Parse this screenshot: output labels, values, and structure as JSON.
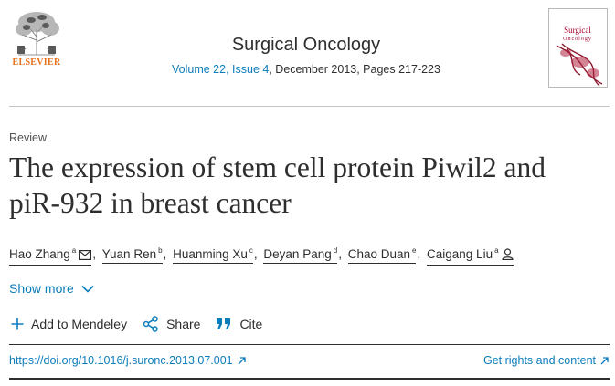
{
  "header": {
    "publisher_logo_text": "ELSEVIER",
    "journal_name": "Surgical Oncology",
    "issue_link": "Volume 22, Issue 4",
    "issue_rest": ", December 2013, Pages 217-223",
    "cover_title_line1": "Surgical",
    "cover_title_line2": "Oncology"
  },
  "article": {
    "type": "Review",
    "title": "The expression of stem cell protein Piwil2 and piR-932 in breast cancer"
  },
  "authors": [
    {
      "name": "Hao Zhang",
      "sup": "a"
    },
    {
      "name": "Yuan Ren",
      "sup": "b"
    },
    {
      "name": "Huanming Xu",
      "sup": "c"
    },
    {
      "name": "Deyan Pang",
      "sup": "d"
    },
    {
      "name": "Chao Duan",
      "sup": "e"
    },
    {
      "name": "Caigang Liu",
      "sup": "a"
    }
  ],
  "authors_sep": ",",
  "show_more_label": "Show more",
  "actions": {
    "mendeley": "Add to Mendeley",
    "share": "Share",
    "cite": "Cite"
  },
  "links": {
    "doi": "https://doi.org/10.1016/j.suronc.2013.07.001",
    "rights": "Get rights and content"
  },
  "colors": {
    "link": "#0c7dbb",
    "text": "#2e2e2e",
    "elsevier_orange": "#e9711c",
    "cover_accent": "#a8002a"
  }
}
